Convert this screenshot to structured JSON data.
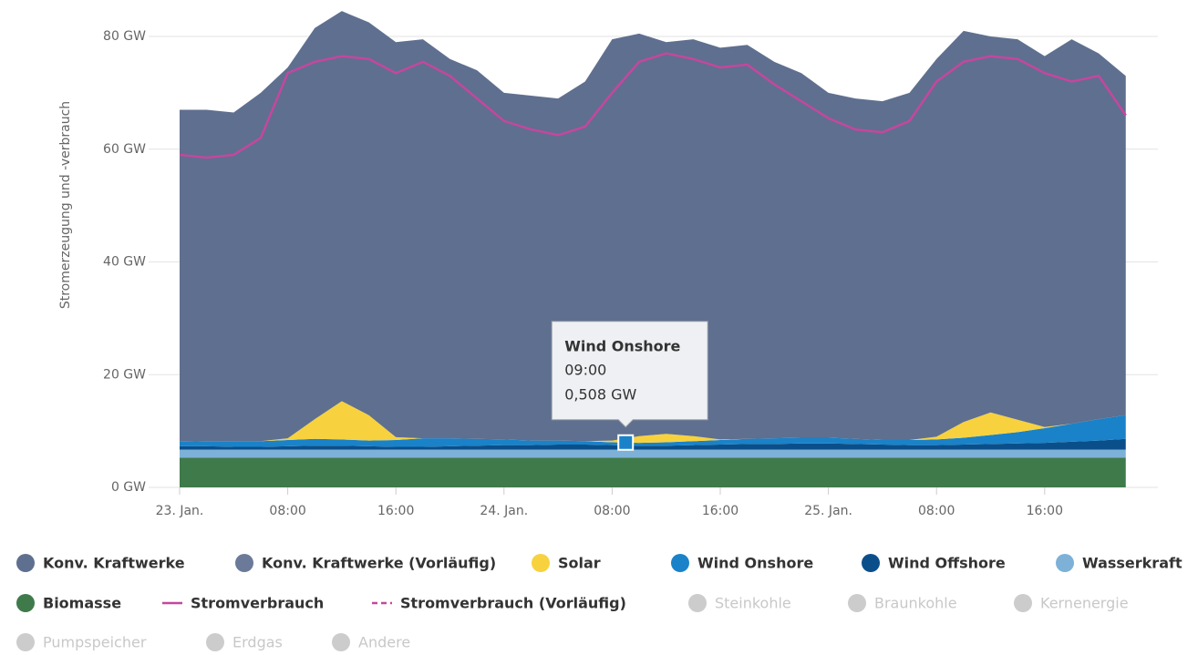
{
  "chart_data": {
    "type": "area",
    "y_label": "Stromerzeugung und -verbrauch",
    "x": [
      0,
      2,
      4,
      6,
      8,
      10,
      12,
      14,
      16,
      18,
      20,
      22,
      24,
      26,
      28,
      30,
      32,
      34,
      36,
      38,
      40,
      42,
      44,
      46,
      48,
      50,
      52,
      54,
      56,
      58,
      60,
      62,
      64,
      66,
      68,
      70
    ],
    "xlim": [
      0,
      71.5
    ],
    "xticks": [
      {
        "value": 0,
        "label": "23. Jan."
      },
      {
        "value": 8,
        "label": "08:00"
      },
      {
        "value": 16,
        "label": "16:00"
      },
      {
        "value": 24,
        "label": "24. Jan."
      },
      {
        "value": 32,
        "label": "08:00"
      },
      {
        "value": 40,
        "label": "16:00"
      },
      {
        "value": 48,
        "label": "25. Jan."
      },
      {
        "value": 56,
        "label": "08:00"
      },
      {
        "value": 64,
        "label": "16:00"
      }
    ],
    "ylim": [
      0,
      85
    ],
    "yticks": [
      {
        "value": 0,
        "label": "0 GW"
      },
      {
        "value": 20,
        "label": "20 GW"
      },
      {
        "value": 40,
        "label": "40 GW"
      },
      {
        "value": 60,
        "label": "60 GW"
      },
      {
        "value": 80,
        "label": "80 GW"
      }
    ],
    "grid": true,
    "legend": "bottom",
    "series": [
      {
        "name": "Konv. Kraftwerke",
        "kind": "area",
        "color": "#5f6f8f",
        "values": [
          58.9,
          58.8,
          58.3,
          61.8,
          65.8,
          69.4,
          69.2,
          69.7,
          70.1,
          70.8,
          67.3,
          65.4,
          61.5,
          61.2,
          60.7,
          63.8,
          71.2,
          71.4,
          69.5,
          70.4,
          69.5,
          69.9,
          66.8,
          64.7,
          61.2,
          60.4,
          60.1,
          61.6,
          67.0,
          69.4,
          66.7,
          67.5,
          65.8,
          68.2,
          64.9,
          60.2
        ]
      },
      {
        "name": "Konv. Kraftwerke (Vorläufig)",
        "kind": "area",
        "color": "#6b7a99",
        "values": null
      },
      {
        "name": "Solar",
        "kind": "area",
        "color": "#f7d23e",
        "values": [
          0,
          0,
          0,
          0,
          0.3,
          3.5,
          6.8,
          4.5,
          0.5,
          0,
          0,
          0,
          0,
          0,
          0,
          0,
          0.3,
          1.2,
          1.5,
          0.9,
          0.1,
          0,
          0,
          0,
          0,
          0,
          0,
          0,
          0.5,
          2.8,
          4.0,
          2.2,
          0.2,
          0,
          0,
          0
        ]
      },
      {
        "name": "Wind Onshore",
        "kind": "area",
        "color": "#1a82c8",
        "values": [
          0.8,
          0.9,
          1.0,
          1.0,
          1.1,
          1.2,
          1.1,
          1.0,
          1.2,
          1.5,
          1.4,
          1.2,
          1.0,
          0.8,
          0.7,
          0.6,
          0.5,
          0.5,
          0.6,
          0.7,
          0.8,
          0.9,
          1.0,
          1.0,
          1.0,
          0.9,
          0.8,
          0.9,
          1.0,
          1.2,
          1.6,
          2.0,
          2.6,
          3.2,
          3.8,
          4.2
        ]
      },
      {
        "name": "Wind Offshore",
        "kind": "area",
        "color": "#0b4f8a",
        "values": [
          0.6,
          0.6,
          0.5,
          0.5,
          0.6,
          0.7,
          0.7,
          0.6,
          0.5,
          0.5,
          0.6,
          0.7,
          0.8,
          0.8,
          0.9,
          0.9,
          0.8,
          0.7,
          0.7,
          0.8,
          0.9,
          1.0,
          1.0,
          1.1,
          1.1,
          1.0,
          0.9,
          0.8,
          0.8,
          0.9,
          1.0,
          1.1,
          1.2,
          1.4,
          1.6,
          1.9
        ]
      },
      {
        "name": "Wasserkraft",
        "kind": "area",
        "color": "#7db1d8",
        "values": [
          1.4,
          1.4,
          1.4,
          1.4,
          1.4,
          1.4,
          1.4,
          1.4,
          1.4,
          1.4,
          1.4,
          1.4,
          1.4,
          1.4,
          1.4,
          1.4,
          1.4,
          1.4,
          1.4,
          1.4,
          1.4,
          1.4,
          1.4,
          1.4,
          1.4,
          1.4,
          1.4,
          1.4,
          1.4,
          1.4,
          1.4,
          1.4,
          1.4,
          1.4,
          1.4,
          1.4
        ]
      },
      {
        "name": "Biomasse",
        "kind": "area",
        "color": "#3f7a4b",
        "values": [
          5.3,
          5.3,
          5.3,
          5.3,
          5.3,
          5.3,
          5.3,
          5.3,
          5.3,
          5.3,
          5.3,
          5.3,
          5.3,
          5.3,
          5.3,
          5.3,
          5.3,
          5.3,
          5.3,
          5.3,
          5.3,
          5.3,
          5.3,
          5.3,
          5.3,
          5.3,
          5.3,
          5.3,
          5.3,
          5.3,
          5.3,
          5.3,
          5.3,
          5.3,
          5.3,
          5.3
        ]
      },
      {
        "name": "Stromverbrauch",
        "kind": "line",
        "color": "#c4479f",
        "values": [
          59,
          58.5,
          59,
          62,
          73.5,
          75.5,
          76.5,
          76,
          73.5,
          75.5,
          73,
          69,
          65,
          63.5,
          62.5,
          64,
          70,
          75.5,
          77,
          76,
          74.5,
          75,
          71.5,
          68.5,
          65.5,
          63.5,
          63,
          65,
          72,
          75.5,
          76.5,
          76,
          73.5,
          72,
          73,
          66
        ]
      },
      {
        "name": "Stromverbrauch (Vorläufig)",
        "kind": "dashed-line",
        "color": "#c4479f",
        "values": null
      },
      {
        "name": "Steinkohle",
        "kind": "area",
        "color": "#cccccc",
        "inactive": true,
        "values": null
      },
      {
        "name": "Braunkohle",
        "kind": "area",
        "color": "#cccccc",
        "inactive": true,
        "values": null
      },
      {
        "name": "Kernenergie",
        "kind": "area",
        "color": "#cccccc",
        "inactive": true,
        "values": null
      },
      {
        "name": "Pumpspeicher",
        "kind": "area",
        "color": "#cccccc",
        "inactive": true,
        "values": null
      },
      {
        "name": "Erdgas",
        "kind": "area",
        "color": "#cccccc",
        "inactive": true,
        "values": null
      },
      {
        "name": "Andere",
        "kind": "area",
        "color": "#cccccc",
        "inactive": true,
        "values": null
      }
    ],
    "tooltip": {
      "title": "Wind Onshore",
      "time": "09:00",
      "x": 33,
      "value": 0.508,
      "value_label": "0,508 GW"
    }
  }
}
